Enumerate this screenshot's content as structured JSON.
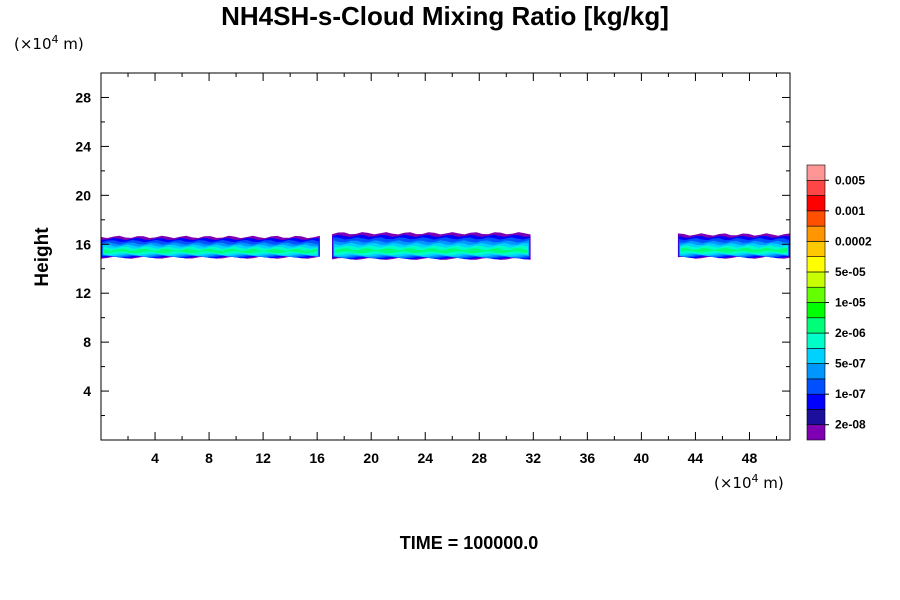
{
  "chart_data": {
    "type": "heatmap",
    "title": "NH4SH-s-Cloud Mixing Ratio [kg/kg]",
    "ylabel": "Height",
    "xlabel": "",
    "x_unit": {
      "prefix": "(×10",
      "exp": "4",
      "suffix": " m)"
    },
    "y_unit": {
      "prefix": "(×10",
      "exp": "4",
      "suffix": " m)"
    },
    "xlim": [
      0,
      51
    ],
    "ylim": [
      0,
      30
    ],
    "x_ticks": [
      4,
      8,
      12,
      16,
      20,
      24,
      28,
      32,
      36,
      40,
      44,
      48
    ],
    "y_ticks": [
      4,
      8,
      12,
      16,
      20,
      24,
      28
    ],
    "x_minor_ticks": [
      2,
      6,
      10,
      14,
      18,
      22,
      26,
      30,
      34,
      38,
      42,
      46,
      50
    ],
    "y_minor_ticks": [
      2,
      6,
      10,
      14,
      18,
      22,
      26
    ],
    "legend": {
      "placement": "right",
      "colors": [
        "#7f00b2",
        "#1c0f9b",
        "#0000ff",
        "#0050ff",
        "#0096ff",
        "#00d2ff",
        "#00ffc8",
        "#00ff78",
        "#00ff00",
        "#64ff00",
        "#c8ff00",
        "#ffff00",
        "#ffc800",
        "#ff9600",
        "#ff5000",
        "#ff0000",
        "#ff4646",
        "#ff9696"
      ],
      "labels": [
        {
          "text": "2e-08",
          "index": 1
        },
        {
          "text": "1e-07",
          "index": 3
        },
        {
          "text": "5e-07",
          "index": 5
        },
        {
          "text": "2e-06",
          "index": 7
        },
        {
          "text": "1e-05",
          "index": 9
        },
        {
          "text": "5e-05",
          "index": 11
        },
        {
          "text": "0.0002",
          "index": 13
        },
        {
          "text": "0.001",
          "index": 15
        },
        {
          "text": "0.005",
          "index": 17
        }
      ]
    },
    "cloud_segments": [
      {
        "x_start": 0.0,
        "x_end": 16.2,
        "top": 16.6,
        "bottom": 14.9
      },
      {
        "x_start": 17.1,
        "x_end": 31.8,
        "top": 16.9,
        "bottom": 14.8
      },
      {
        "x_start": 42.7,
        "x_end": 51.0,
        "top": 16.8,
        "bottom": 14.9
      }
    ]
  },
  "footer": {
    "time_label": "TIME = 100000.0"
  }
}
